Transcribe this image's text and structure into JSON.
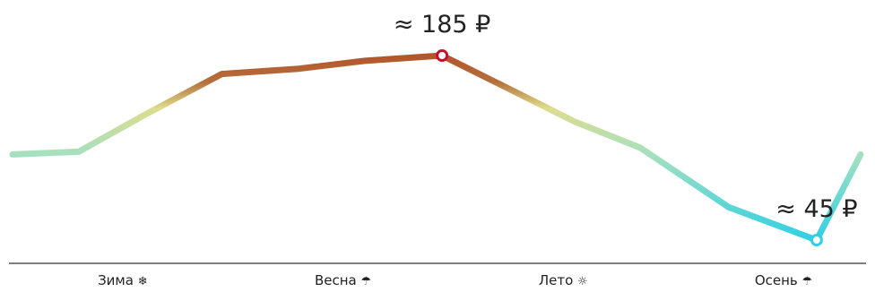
{
  "chart_data": {
    "type": "line",
    "title": "",
    "xlabel": "",
    "ylabel": "",
    "units": "₽",
    "grid": false,
    "legend": "none",
    "ylim": [
      20,
      200
    ],
    "seasons": [
      {
        "label": "Зима",
        "icon": "snowflake-icon",
        "symbol": "❄"
      },
      {
        "label": "Весна",
        "icon": "umbrella-closed-icon",
        "symbol": "☂"
      },
      {
        "label": "Лето",
        "icon": "sun-icon",
        "symbol": "☼"
      },
      {
        "label": "Осень",
        "icon": "umbrella-icon",
        "symbol": "☂"
      }
    ],
    "x": [
      0.0,
      0.3,
      0.6,
      0.95,
      1.3,
      1.6,
      1.95,
      2.25,
      2.55,
      2.85,
      3.25,
      3.65,
      3.85
    ],
    "values": [
      110,
      112,
      140,
      171,
      175,
      181,
      185,
      160,
      135,
      115,
      70,
      45,
      110
    ],
    "color_scale": [
      {
        "value": 45,
        "color": "#2fd0e4"
      },
      {
        "value": 110,
        "color": "#a5e0c0"
      },
      {
        "value": 145,
        "color": "#dedd8c"
      },
      {
        "value": 165,
        "color": "#b5703c"
      },
      {
        "value": 185,
        "color": "#b2552b"
      }
    ],
    "annotations": [
      {
        "label": "≈ 185 ₽",
        "value": 185,
        "point_index": 6,
        "kind": "max",
        "marker_color": "#c8102e"
      },
      {
        "label": "≈ 45 ₽",
        "value": 45,
        "point_index": 11,
        "kind": "min",
        "marker_color": "#2fd0e4"
      }
    ]
  }
}
